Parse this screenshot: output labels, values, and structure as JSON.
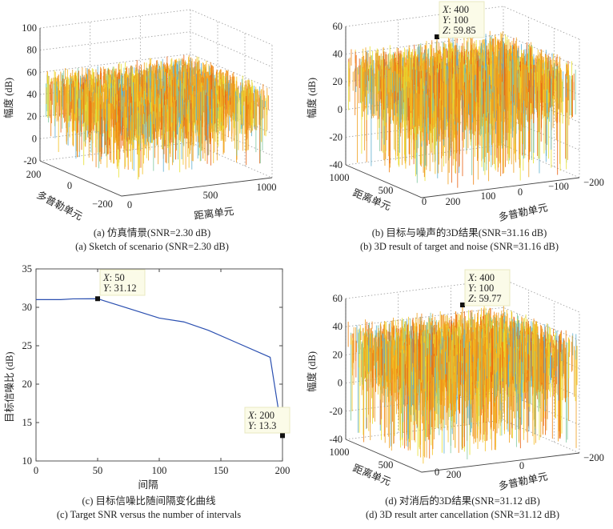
{
  "colors": {
    "surface": [
      "#f0a020",
      "#f5c020",
      "#e8e030",
      "#f08010",
      "#e86010",
      "#80c8a0",
      "#60b0d0"
    ],
    "line": "#2a4fb0",
    "datatip_bg": "#fbfbe8"
  },
  "chart_data": [
    {
      "type": "surface3d",
      "caption_cn": "(a) 仿真情景(SNR=2.30 dB)",
      "caption_en": "(a) Sketch of scenario (SNR=2.30 dB)",
      "zlabel": "幅度 (dB)",
      "xlabel": "距离单元",
      "ylabel": "多普勒单元",
      "zlim": [
        -20,
        100
      ],
      "zticks": [
        "-20",
        "0",
        "20",
        "40",
        "60",
        "80",
        "100"
      ],
      "xticks": [
        "0",
        "500",
        "1000"
      ],
      "yticks": [
        "200",
        "0",
        "−200"
      ],
      "grid": true
    },
    {
      "type": "surface3d",
      "caption_cn": "(b) 目标与噪声的3D结果(SNR=31.16 dB)",
      "caption_en": "(b) 3D result of target and noise (SNR=31.16 dB)",
      "zlabel": "幅度 (dB)",
      "xlabel": "距离单元",
      "ylabel": "多普勒单元",
      "zlim": [
        -40,
        60
      ],
      "zticks": [
        "-40",
        "-20",
        "0",
        "20",
        "40",
        "60"
      ],
      "xticks": [
        "1000",
        "500",
        "0"
      ],
      "yticks": [
        "200",
        "100",
        "0",
        "−100",
        "−200"
      ],
      "grid": true,
      "datatip": {
        "x_label": "X",
        "x": "400",
        "y_label": "Y",
        "y": "100",
        "z_label": "Z",
        "z": "59.85"
      }
    },
    {
      "type": "line",
      "caption_cn": "(c) 目标信噪比随间隔变化曲线",
      "caption_en": "(c) Target SNR versus the number of intervals",
      "xlabel": "间隔",
      "ylabel": "目标信噪比 (dB)",
      "xlim": [
        0,
        200
      ],
      "ylim": [
        10,
        35
      ],
      "xticks": [
        "0",
        "50",
        "100",
        "150",
        "200"
      ],
      "yticks": [
        "10",
        "15",
        "20",
        "25",
        "30",
        "35"
      ],
      "grid": false,
      "x": [
        0,
        20,
        30,
        50,
        100,
        120,
        140,
        160,
        190,
        200
      ],
      "y": [
        31.0,
        31.0,
        31.1,
        31.12,
        28.6,
        28.1,
        27.0,
        25.6,
        23.5,
        13.3
      ],
      "datatips": [
        {
          "x_label": "X",
          "x": "50",
          "y_label": "Y",
          "y": "31.12"
        },
        {
          "x_label": "X",
          "x": "200",
          "y_label": "Y",
          "y": "13.3"
        }
      ]
    },
    {
      "type": "surface3d",
      "caption_cn": "(d) 对消后的3D结果(SNR=31.12 dB)",
      "caption_en": "(d) 3D result arter cancellation (SNR=31.12 dB)",
      "zlabel": "幅度 (dB)",
      "xlabel": "距离单元",
      "ylabel": "多普勒单元",
      "zlim": [
        -40,
        60
      ],
      "zticks": [
        "-40",
        "-20",
        "0",
        "20",
        "40",
        "60"
      ],
      "xticks": [
        "1000",
        "500",
        "0"
      ],
      "yticks": [
        "200",
        "0",
        "−200"
      ],
      "grid": true,
      "datatip": {
        "x_label": "X",
        "x": "400",
        "y_label": "Y",
        "y": "100",
        "z_label": "Z",
        "z": "59.77"
      }
    }
  ]
}
